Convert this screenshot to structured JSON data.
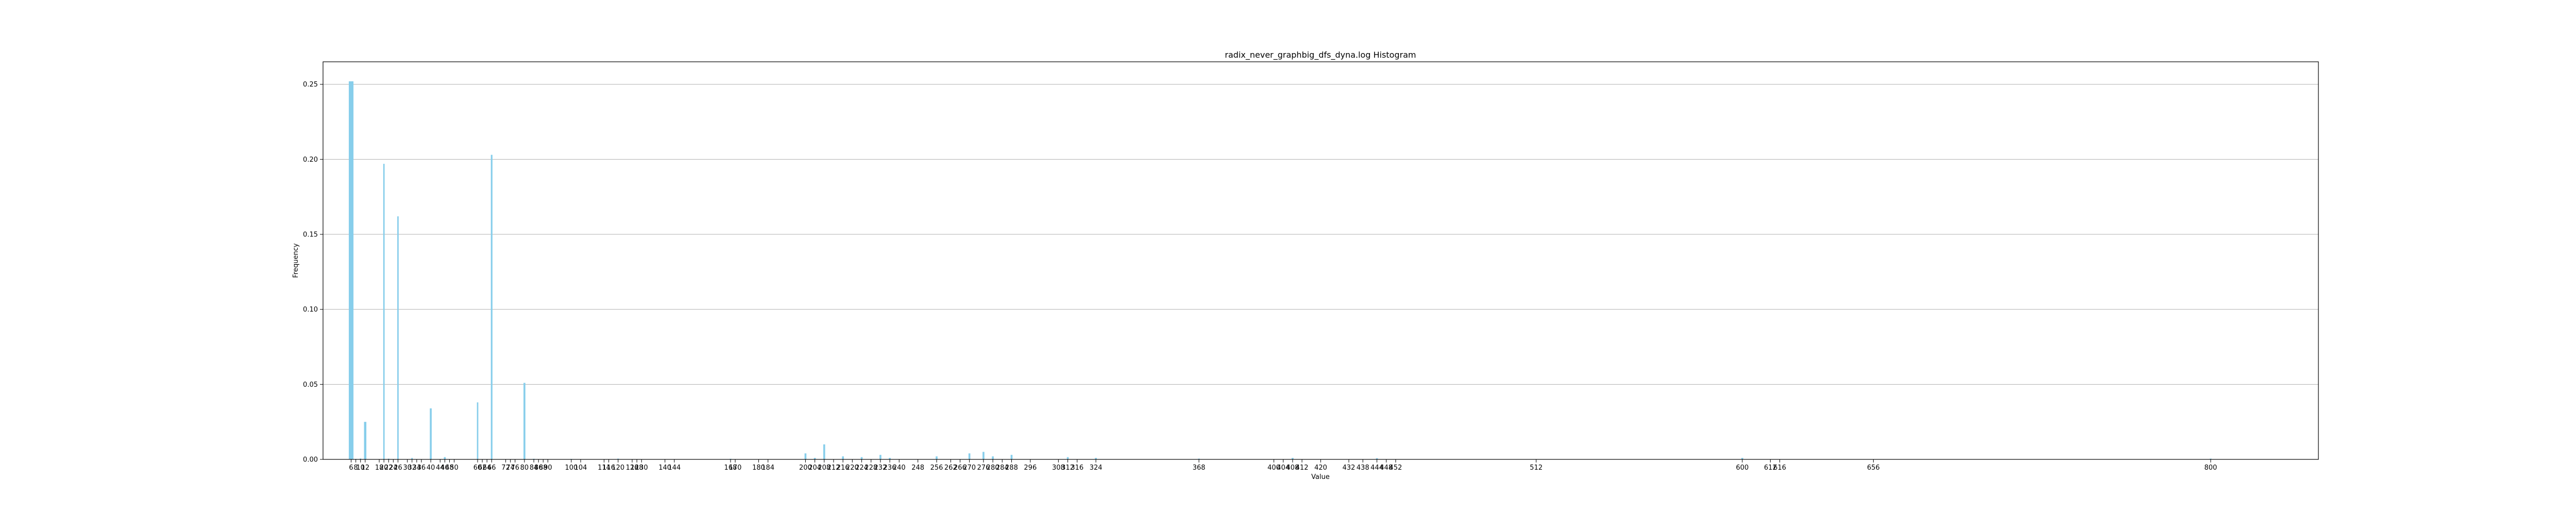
{
  "chart_data": {
    "type": "bar",
    "title": "radix_never_graphbig_dfs_dyna.log Histogram",
    "xlabel": "Value",
    "ylabel": "Frequency",
    "xlim": [
      -6,
      846
    ],
    "ylim": [
      0,
      0.265
    ],
    "grid": "horizontal",
    "bar_color": "#87CEEB",
    "axis_color": "#000000",
    "grid_color": "#b0b0b0",
    "y_ticks": [
      {
        "value": 0,
        "label": "0.00"
      },
      {
        "value": 0.05,
        "label": "0.05"
      },
      {
        "value": 0.1,
        "label": "0.10"
      },
      {
        "value": 0.15,
        "label": "0.15"
      },
      {
        "value": 0.2,
        "label": "0.20"
      },
      {
        "value": 0.25,
        "label": "0.25"
      }
    ],
    "x_ticks": [
      {
        "value": 6,
        "label": "6"
      },
      {
        "value": 8,
        "label": "8"
      },
      {
        "value": 10,
        "label": "10"
      },
      {
        "value": 12,
        "label": "12"
      },
      {
        "value": 18,
        "label": "18"
      },
      {
        "value": 20,
        "label": "20"
      },
      {
        "value": 22,
        "label": "22"
      },
      {
        "value": 24,
        "label": "24"
      },
      {
        "value": 26,
        "label": "26"
      },
      {
        "value": 30,
        "label": "30"
      },
      {
        "value": 32,
        "label": "32"
      },
      {
        "value": 34,
        "label": "34"
      },
      {
        "value": 36,
        "label": "36"
      },
      {
        "value": 40,
        "label": "40"
      },
      {
        "value": 44,
        "label": "44"
      },
      {
        "value": 46,
        "label": "46"
      },
      {
        "value": 48,
        "label": "48"
      },
      {
        "value": 50,
        "label": "50"
      },
      {
        "value": 60,
        "label": "60"
      },
      {
        "value": 62,
        "label": "62"
      },
      {
        "value": 64,
        "label": "64"
      },
      {
        "value": 66,
        "label": "66"
      },
      {
        "value": 72,
        "label": "72"
      },
      {
        "value": 74,
        "label": "74"
      },
      {
        "value": 76,
        "label": "76"
      },
      {
        "value": 80,
        "label": "80"
      },
      {
        "value": 84,
        "label": "84"
      },
      {
        "value": 86,
        "label": "86"
      },
      {
        "value": 88,
        "label": "88"
      },
      {
        "value": 90,
        "label": "90"
      },
      {
        "value": 100,
        "label": "100"
      },
      {
        "value": 104,
        "label": "104"
      },
      {
        "value": 114,
        "label": "114"
      },
      {
        "value": 116,
        "label": "116"
      },
      {
        "value": 120,
        "label": "120"
      },
      {
        "value": 126,
        "label": "126"
      },
      {
        "value": 128,
        "label": "128"
      },
      {
        "value": 130,
        "label": "130"
      },
      {
        "value": 140,
        "label": "140"
      },
      {
        "value": 144,
        "label": "144"
      },
      {
        "value": 168,
        "label": "168"
      },
      {
        "value": 170,
        "label": "170"
      },
      {
        "value": 180,
        "label": "180"
      },
      {
        "value": 184,
        "label": "184"
      },
      {
        "value": 200,
        "label": "200"
      },
      {
        "value": 204,
        "label": "204"
      },
      {
        "value": 208,
        "label": "208"
      },
      {
        "value": 212,
        "label": "212"
      },
      {
        "value": 216,
        "label": "216"
      },
      {
        "value": 220,
        "label": "220"
      },
      {
        "value": 224,
        "label": "224"
      },
      {
        "value": 228,
        "label": "228"
      },
      {
        "value": 232,
        "label": "232"
      },
      {
        "value": 236,
        "label": "236"
      },
      {
        "value": 240,
        "label": "240"
      },
      {
        "value": 248,
        "label": "248"
      },
      {
        "value": 256,
        "label": "256"
      },
      {
        "value": 262,
        "label": "262"
      },
      {
        "value": 266,
        "label": "266"
      },
      {
        "value": 270,
        "label": "270"
      },
      {
        "value": 276,
        "label": "276"
      },
      {
        "value": 280,
        "label": "280"
      },
      {
        "value": 284,
        "label": "284"
      },
      {
        "value": 288,
        "label": "288"
      },
      {
        "value": 296,
        "label": "296"
      },
      {
        "value": 308,
        "label": "308"
      },
      {
        "value": 312,
        "label": "312"
      },
      {
        "value": 316,
        "label": "316"
      },
      {
        "value": 324,
        "label": "324"
      },
      {
        "value": 368,
        "label": "368"
      },
      {
        "value": 400,
        "label": "400"
      },
      {
        "value": 404,
        "label": "404"
      },
      {
        "value": 408,
        "label": "408"
      },
      {
        "value": 412,
        "label": "412"
      },
      {
        "value": 420,
        "label": "420"
      },
      {
        "value": 432,
        "label": "432"
      },
      {
        "value": 438,
        "label": "438"
      },
      {
        "value": 444,
        "label": "444"
      },
      {
        "value": 448,
        "label": "448"
      },
      {
        "value": 452,
        "label": "452"
      },
      {
        "value": 512,
        "label": "512"
      },
      {
        "value": 600,
        "label": "600"
      },
      {
        "value": 612,
        "label": "612"
      },
      {
        "value": 616,
        "label": "616"
      },
      {
        "value": 656,
        "label": "656"
      },
      {
        "value": 800,
        "label": "800"
      }
    ],
    "bars": [
      {
        "x": 6,
        "width": 2,
        "value": 0.252
      },
      {
        "x": 8,
        "width": 0.6,
        "value": 0.0003
      },
      {
        "x": 10,
        "width": 0.6,
        "value": 0.0006
      },
      {
        "x": 12,
        "width": 1,
        "value": 0.025
      },
      {
        "x": 20,
        "width": 0.6,
        "value": 0.197
      },
      {
        "x": 22,
        "width": 0.6,
        "value": 0.0005
      },
      {
        "x": 26,
        "width": 0.6,
        "value": 0.162
      },
      {
        "x": 32,
        "width": 0.6,
        "value": 0.001
      },
      {
        "x": 40,
        "width": 0.8,
        "value": 0.034
      },
      {
        "x": 46,
        "width": 0.8,
        "value": 0.0015
      },
      {
        "x": 60,
        "width": 0.6,
        "value": 0.038
      },
      {
        "x": 66,
        "width": 0.7,
        "value": 0.203
      },
      {
        "x": 80,
        "width": 0.8,
        "value": 0.051
      },
      {
        "x": 84,
        "width": 0.8,
        "value": 0.0004
      },
      {
        "x": 100,
        "width": 0.8,
        "value": 0.0003
      },
      {
        "x": 120,
        "width": 0.8,
        "value": 0.0005
      },
      {
        "x": 168,
        "width": 0.8,
        "value": 0.0004
      },
      {
        "x": 200,
        "width": 0.8,
        "value": 0.004
      },
      {
        "x": 204,
        "width": 0.8,
        "value": 0.001
      },
      {
        "x": 208,
        "width": 0.8,
        "value": 0.01
      },
      {
        "x": 216,
        "width": 0.8,
        "value": 0.002
      },
      {
        "x": 224,
        "width": 0.8,
        "value": 0.0015
      },
      {
        "x": 232,
        "width": 0.8,
        "value": 0.003
      },
      {
        "x": 236,
        "width": 0.8,
        "value": 0.001
      },
      {
        "x": 256,
        "width": 0.8,
        "value": 0.002
      },
      {
        "x": 270,
        "width": 0.8,
        "value": 0.004
      },
      {
        "x": 276,
        "width": 0.8,
        "value": 0.005
      },
      {
        "x": 280,
        "width": 0.8,
        "value": 0.002
      },
      {
        "x": 288,
        "width": 0.8,
        "value": 0.003
      },
      {
        "x": 312,
        "width": 0.8,
        "value": 0.0015
      },
      {
        "x": 324,
        "width": 0.8,
        "value": 0.001
      },
      {
        "x": 368,
        "width": 0.8,
        "value": 0.0005
      },
      {
        "x": 408,
        "width": 0.8,
        "value": 0.001
      },
      {
        "x": 444,
        "width": 0.8,
        "value": 0.0008
      },
      {
        "x": 600,
        "width": 0.8,
        "value": 0.001
      },
      {
        "x": 800,
        "width": 0.8,
        "value": 0.0005
      }
    ]
  }
}
